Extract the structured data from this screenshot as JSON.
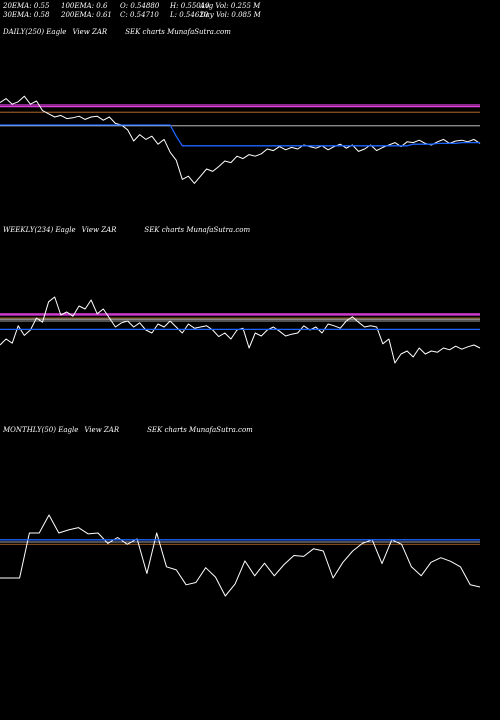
{
  "header": {
    "row1": [
      {
        "text": "20EMA: 0.55"
      },
      {
        "text": "100EMA: 0.6"
      },
      {
        "text": "O: 0.54880"
      },
      {
        "text": "H: 0.55010"
      },
      {
        "text": "Avg Vol: 0.255 M"
      }
    ],
    "row2": [
      {
        "text": "30EMA: 0.58"
      },
      {
        "text": "200EMA: 0.61"
      },
      {
        "text": "C: 0.54710"
      },
      {
        "text": "L: 0.54620"
      },
      {
        "text": "Day Vol: 0.085 M"
      }
    ]
  },
  "colors": {
    "price": "#ffffff",
    "ema_blue": "#1e64ff",
    "ema_magenta": "#e040e0",
    "ema_orange": "#c87832",
    "ema_white": "#d8d8d8",
    "background": "#000000"
  },
  "chart_data": [
    {
      "type": "line",
      "panel": "daily",
      "label_parts": [
        "DAILY(250) Eagle",
        "View ZAR",
        "SEK charts MunafaSutra.com"
      ],
      "x_count": 80,
      "ylim": [
        0.5,
        0.7
      ],
      "series": [
        {
          "values": [
            0.628,
            0.633,
            0.626,
            0.629,
            0.636,
            0.626,
            0.63,
            0.618,
            0.614,
            0.61,
            0.612,
            0.608,
            0.609,
            0.611,
            0.607,
            0.61,
            0.611,
            0.606,
            0.61,
            0.602,
            0.6,
            0.594,
            0.58,
            0.588,
            0.582,
            0.586,
            0.576,
            0.582,
            0.566,
            0.556,
            0.532,
            0.536,
            0.527,
            0.536,
            0.545,
            0.542,
            0.548,
            0.555,
            0.553,
            0.561,
            0.558,
            0.563,
            0.561,
            0.564,
            0.57,
            0.568,
            0.573,
            0.569,
            0.572,
            0.57,
            0.575,
            0.573,
            0.571,
            0.574,
            0.569,
            0.573,
            0.576,
            0.571,
            0.575,
            0.567,
            0.57,
            0.575,
            0.568,
            0.572,
            0.575,
            0.578,
            0.573,
            0.579,
            0.578,
            0.581,
            0.577,
            0.575,
            0.579,
            0.582,
            0.577,
            0.58,
            0.581,
            0.579,
            0.582,
            0.577
          ]
        },
        {
          "color_key": "ema_blue",
          "values": [
            0.6,
            0.6,
            0.6,
            0.6,
            0.6,
            0.6,
            0.6,
            0.6,
            0.6,
            0.6,
            0.6,
            0.6,
            0.6,
            0.6,
            0.6,
            0.6,
            0.6,
            0.6,
            0.6,
            0.6,
            0.6,
            0.6,
            0.6,
            0.6,
            0.6,
            0.6,
            0.6,
            0.6,
            0.6,
            0.586,
            0.574,
            0.574,
            0.574,
            0.574,
            0.574,
            0.574,
            0.574,
            0.574,
            0.574,
            0.574,
            0.574,
            0.574,
            0.574,
            0.574,
            0.574,
            0.574,
            0.574,
            0.574,
            0.574,
            0.574,
            0.574,
            0.574,
            0.574,
            0.574,
            0.574,
            0.574,
            0.574,
            0.574,
            0.574,
            0.574,
            0.574,
            0.574,
            0.574,
            0.574,
            0.574,
            0.574,
            0.574,
            0.574,
            0.576,
            0.576,
            0.576,
            0.576,
            0.577,
            0.577,
            0.577,
            0.577,
            0.578,
            0.578,
            0.578,
            0.578
          ]
        }
      ],
      "hlines": [
        {
          "color_key": "ema_magenta",
          "value": 0.623
        },
        {
          "color_key": "ema_magenta",
          "value": 0.625
        },
        {
          "color_key": "ema_orange",
          "value": 0.616
        },
        {
          "color_key": "ema_white",
          "value": 0.599
        }
      ]
    },
    {
      "type": "line",
      "panel": "weekly",
      "label_parts": [
        "WEEKLY(234) Eagle",
        "View ZAR",
        "SEK charts MunafaSutra.com"
      ],
      "x_count": 80,
      "ylim": [
        0.45,
        0.75
      ],
      "series": [
        {
          "values": [
            0.58,
            0.59,
            0.583,
            0.612,
            0.596,
            0.605,
            0.625,
            0.618,
            0.652,
            0.66,
            0.63,
            0.635,
            0.628,
            0.645,
            0.64,
            0.655,
            0.632,
            0.64,
            0.625,
            0.61,
            0.617,
            0.62,
            0.61,
            0.617,
            0.605,
            0.6,
            0.615,
            0.61,
            0.62,
            0.61,
            0.6,
            0.615,
            0.608,
            0.61,
            0.612,
            0.605,
            0.594,
            0.6,
            0.59,
            0.605,
            0.608,
            0.575,
            0.6,
            0.595,
            0.605,
            0.61,
            0.603,
            0.595,
            0.598,
            0.6,
            0.612,
            0.605,
            0.61,
            0.6,
            0.615,
            0.612,
            0.608,
            0.62,
            0.627,
            0.618,
            0.61,
            0.612,
            0.61,
            0.582,
            0.59,
            0.55,
            0.565,
            0.57,
            0.56,
            0.575,
            0.565,
            0.57,
            0.568,
            0.575,
            0.572,
            0.578,
            0.573,
            0.577,
            0.58,
            0.575
          ]
        },
        {
          "color_key": "ema_blue",
          "values": [
            0.606,
            0.606,
            0.606,
            0.606,
            0.606,
            0.606,
            0.606,
            0.606,
            0.606,
            0.606,
            0.606,
            0.606,
            0.606,
            0.606,
            0.606,
            0.606,
            0.606,
            0.606,
            0.606,
            0.606,
            0.606,
            0.606,
            0.606,
            0.606,
            0.606,
            0.606,
            0.606,
            0.606,
            0.606,
            0.606,
            0.606,
            0.606,
            0.606,
            0.606,
            0.606,
            0.606,
            0.606,
            0.606,
            0.606,
            0.606,
            0.606,
            0.606,
            0.606,
            0.606,
            0.606,
            0.606,
            0.606,
            0.606,
            0.606,
            0.606,
            0.606,
            0.606,
            0.606,
            0.606,
            0.606,
            0.606,
            0.606,
            0.606,
            0.606,
            0.606,
            0.606,
            0.606,
            0.606,
            0.606,
            0.606,
            0.606,
            0.606,
            0.606,
            0.606,
            0.606,
            0.606,
            0.606,
            0.606,
            0.606,
            0.606,
            0.606,
            0.606,
            0.606,
            0.606,
            0.606
          ]
        }
      ],
      "hlines": [
        {
          "color_key": "ema_magenta",
          "value": 0.63
        },
        {
          "color_key": "ema_magenta",
          "value": 0.632
        },
        {
          "color_key": "ema_orange",
          "value": 0.625
        },
        {
          "color_key": "ema_white",
          "value": 0.623
        },
        {
          "color_key": "ema_white",
          "value": 0.62
        }
      ]
    },
    {
      "type": "line",
      "panel": "monthly",
      "label_parts": [
        "MONTHLY(50) Eagle",
        "View ZAR",
        "SEK charts MunafaSutra.com"
      ],
      "x_count": 50,
      "ylim": [
        0.4,
        0.8
      ],
      "series": [
        {
          "values": [
            0.5,
            0.5,
            0.5,
            0.6,
            0.6,
            0.64,
            0.6,
            0.607,
            0.612,
            0.598,
            0.6,
            0.577,
            0.59,
            0.575,
            0.587,
            0.51,
            0.6,
            0.525,
            0.518,
            0.485,
            0.49,
            0.523,
            0.502,
            0.46,
            0.487,
            0.538,
            0.505,
            0.533,
            0.505,
            0.53,
            0.55,
            0.548,
            0.565,
            0.56,
            0.5,
            0.535,
            0.56,
            0.577,
            0.585,
            0.532,
            0.585,
            0.575,
            0.525,
            0.505,
            0.535,
            0.545,
            0.537,
            0.525,
            0.485,
            0.48
          ]
        },
        {
          "color_key": "ema_blue",
          "values": [
            0.585,
            0.585,
            0.585,
            0.585,
            0.585,
            0.585,
            0.585,
            0.585,
            0.585,
            0.585,
            0.585,
            0.585,
            0.585,
            0.585,
            0.585,
            0.585,
            0.585,
            0.585,
            0.585,
            0.585,
            0.585,
            0.585,
            0.585,
            0.585,
            0.585,
            0.585,
            0.585,
            0.585,
            0.585,
            0.585,
            0.585,
            0.585,
            0.585,
            0.585,
            0.585,
            0.585,
            0.585,
            0.585,
            0.585,
            0.585,
            0.585,
            0.585,
            0.585,
            0.585,
            0.585,
            0.585,
            0.585,
            0.585,
            0.585,
            0.585
          ]
        }
      ],
      "hlines": [
        {
          "color_key": "ema_white",
          "value": 0.58
        },
        {
          "color_key": "ema_orange",
          "value": 0.575
        }
      ]
    }
  ]
}
